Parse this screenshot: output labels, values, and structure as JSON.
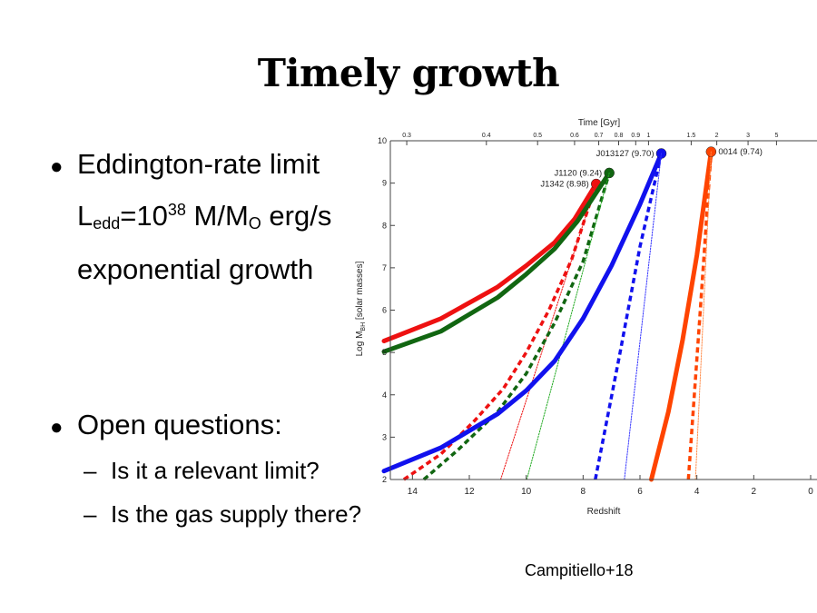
{
  "slide": {
    "title": "Timely growth",
    "bullets": [
      {
        "label": "Eddington-rate limit",
        "formula": {
          "l": "L",
          "l_sub": "edd",
          "eq": "=10",
          "exp": "38",
          "m": " M/M",
          "m_sub": "O",
          "unit": " erg/s"
        },
        "extra": "exponential growth"
      },
      {
        "label": "Open questions:",
        "subitems": [
          "Is it a relevant limit?",
          "Is the gas supply there?"
        ]
      }
    ],
    "credit": "Campitiello+18"
  },
  "chart_data": {
    "type": "line",
    "xlabel": "Redshift",
    "ylabel_parts": [
      "Log M",
      "BH",
      " [solar masses]"
    ],
    "top_axis_label": "Time  [Gyr]",
    "xlim": [
      15,
      0
    ],
    "ylim": [
      2,
      10
    ],
    "x_ticks": [
      14,
      12,
      10,
      8,
      6,
      4,
      2,
      0
    ],
    "y_ticks": [
      2,
      3,
      4,
      5,
      6,
      7,
      8,
      9,
      10
    ],
    "top_ticks": [
      {
        "label": "0.3",
        "z": 14.2
      },
      {
        "label": "0.4",
        "z": 11.4
      },
      {
        "label": "0.5",
        "z": 9.6
      },
      {
        "label": "0.6",
        "z": 8.3
      },
      {
        "label": "0.7",
        "z": 7.45
      },
      {
        "label": "0.8",
        "z": 6.75
      },
      {
        "label": "0.9",
        "z": 6.15
      },
      {
        "label": "1",
        "z": 5.7
      },
      {
        "label": "1.5",
        "z": 4.2
      },
      {
        "label": "2",
        "z": 3.3
      },
      {
        "label": "3",
        "z": 2.2
      },
      {
        "label": "5",
        "z": 1.2
      }
    ],
    "grid": false,
    "series": [
      {
        "name": "J1342 (8.98)",
        "color": "#ee1111",
        "dash": "solid",
        "endpoint": true,
        "points": [
          [
            15,
            5.27
          ],
          [
            13,
            5.8
          ],
          [
            11,
            6.55
          ],
          [
            10,
            7.05
          ],
          [
            9,
            7.6
          ],
          [
            8.3,
            8.15
          ],
          [
            7.54,
            8.98
          ]
        ]
      },
      {
        "color": "#ee1111",
        "dash": "dashed",
        "points": [
          [
            14.3,
            2.0
          ],
          [
            13,
            2.6
          ],
          [
            11.8,
            3.4
          ],
          [
            10.8,
            4.15
          ],
          [
            10,
            5.0
          ],
          [
            9.2,
            6.0
          ],
          [
            8.4,
            7.2
          ],
          [
            7.54,
            8.98
          ]
        ]
      },
      {
        "color": "#ee1111",
        "dash": "dotted",
        "points": [
          [
            10.9,
            2.0
          ],
          [
            7.54,
            8.98
          ]
        ]
      },
      {
        "name": "J1120 (9.24)",
        "color": "#116611",
        "dash": "solid",
        "endpoint": true,
        "points": [
          [
            15,
            5.02
          ],
          [
            13,
            5.5
          ],
          [
            11,
            6.3
          ],
          [
            10,
            6.85
          ],
          [
            9,
            7.45
          ],
          [
            8.2,
            8.1
          ],
          [
            7.08,
            9.24
          ]
        ]
      },
      {
        "color": "#116611",
        "dash": "dashed",
        "points": [
          [
            13.6,
            2.0
          ],
          [
            12.4,
            2.7
          ],
          [
            11,
            3.6
          ],
          [
            10,
            4.5
          ],
          [
            9,
            5.7
          ],
          [
            8,
            7.15
          ],
          [
            7.08,
            9.24
          ]
        ]
      },
      {
        "color": "#22aa22",
        "dash": "dotted",
        "points": [
          [
            9.98,
            2.0
          ],
          [
            7.08,
            9.24
          ]
        ]
      },
      {
        "name": "J013127 (9.70)",
        "color": "#1111ee",
        "dash": "solid",
        "endpoint": true,
        "points": [
          [
            15,
            2.2
          ],
          [
            13,
            2.75
          ],
          [
            11,
            3.55
          ],
          [
            10,
            4.1
          ],
          [
            9,
            4.8
          ],
          [
            8,
            5.8
          ],
          [
            7,
            7.05
          ],
          [
            6,
            8.5
          ],
          [
            5.25,
            9.7
          ]
        ]
      },
      {
        "color": "#1111ee",
        "dash": "dashed",
        "points": [
          [
            7.57,
            2.0
          ],
          [
            6.7,
            5.0
          ],
          [
            6.0,
            7.5
          ],
          [
            5.25,
            9.7
          ]
        ]
      },
      {
        "color": "#3333ff",
        "dash": "dotted",
        "points": [
          [
            6.55,
            2.0
          ],
          [
            5.25,
            9.7
          ]
        ]
      },
      {
        "name": "0014 (9.74)",
        "color": "#ff4400",
        "dash": "solid",
        "endpoint": true,
        "points": [
          [
            5.6,
            2.0
          ],
          [
            5.0,
            3.6
          ],
          [
            4.5,
            5.3
          ],
          [
            4.0,
            7.3
          ],
          [
            3.5,
            9.74
          ]
        ]
      },
      {
        "color": "#ff4400",
        "dash": "dashed",
        "points": [
          [
            4.3,
            2.0
          ],
          [
            3.9,
            5.8
          ],
          [
            3.5,
            9.74
          ]
        ]
      },
      {
        "color": "#ff8844",
        "dash": "dotted",
        "points": [
          [
            4.05,
            2.0
          ],
          [
            3.5,
            9.74
          ]
        ]
      }
    ]
  }
}
